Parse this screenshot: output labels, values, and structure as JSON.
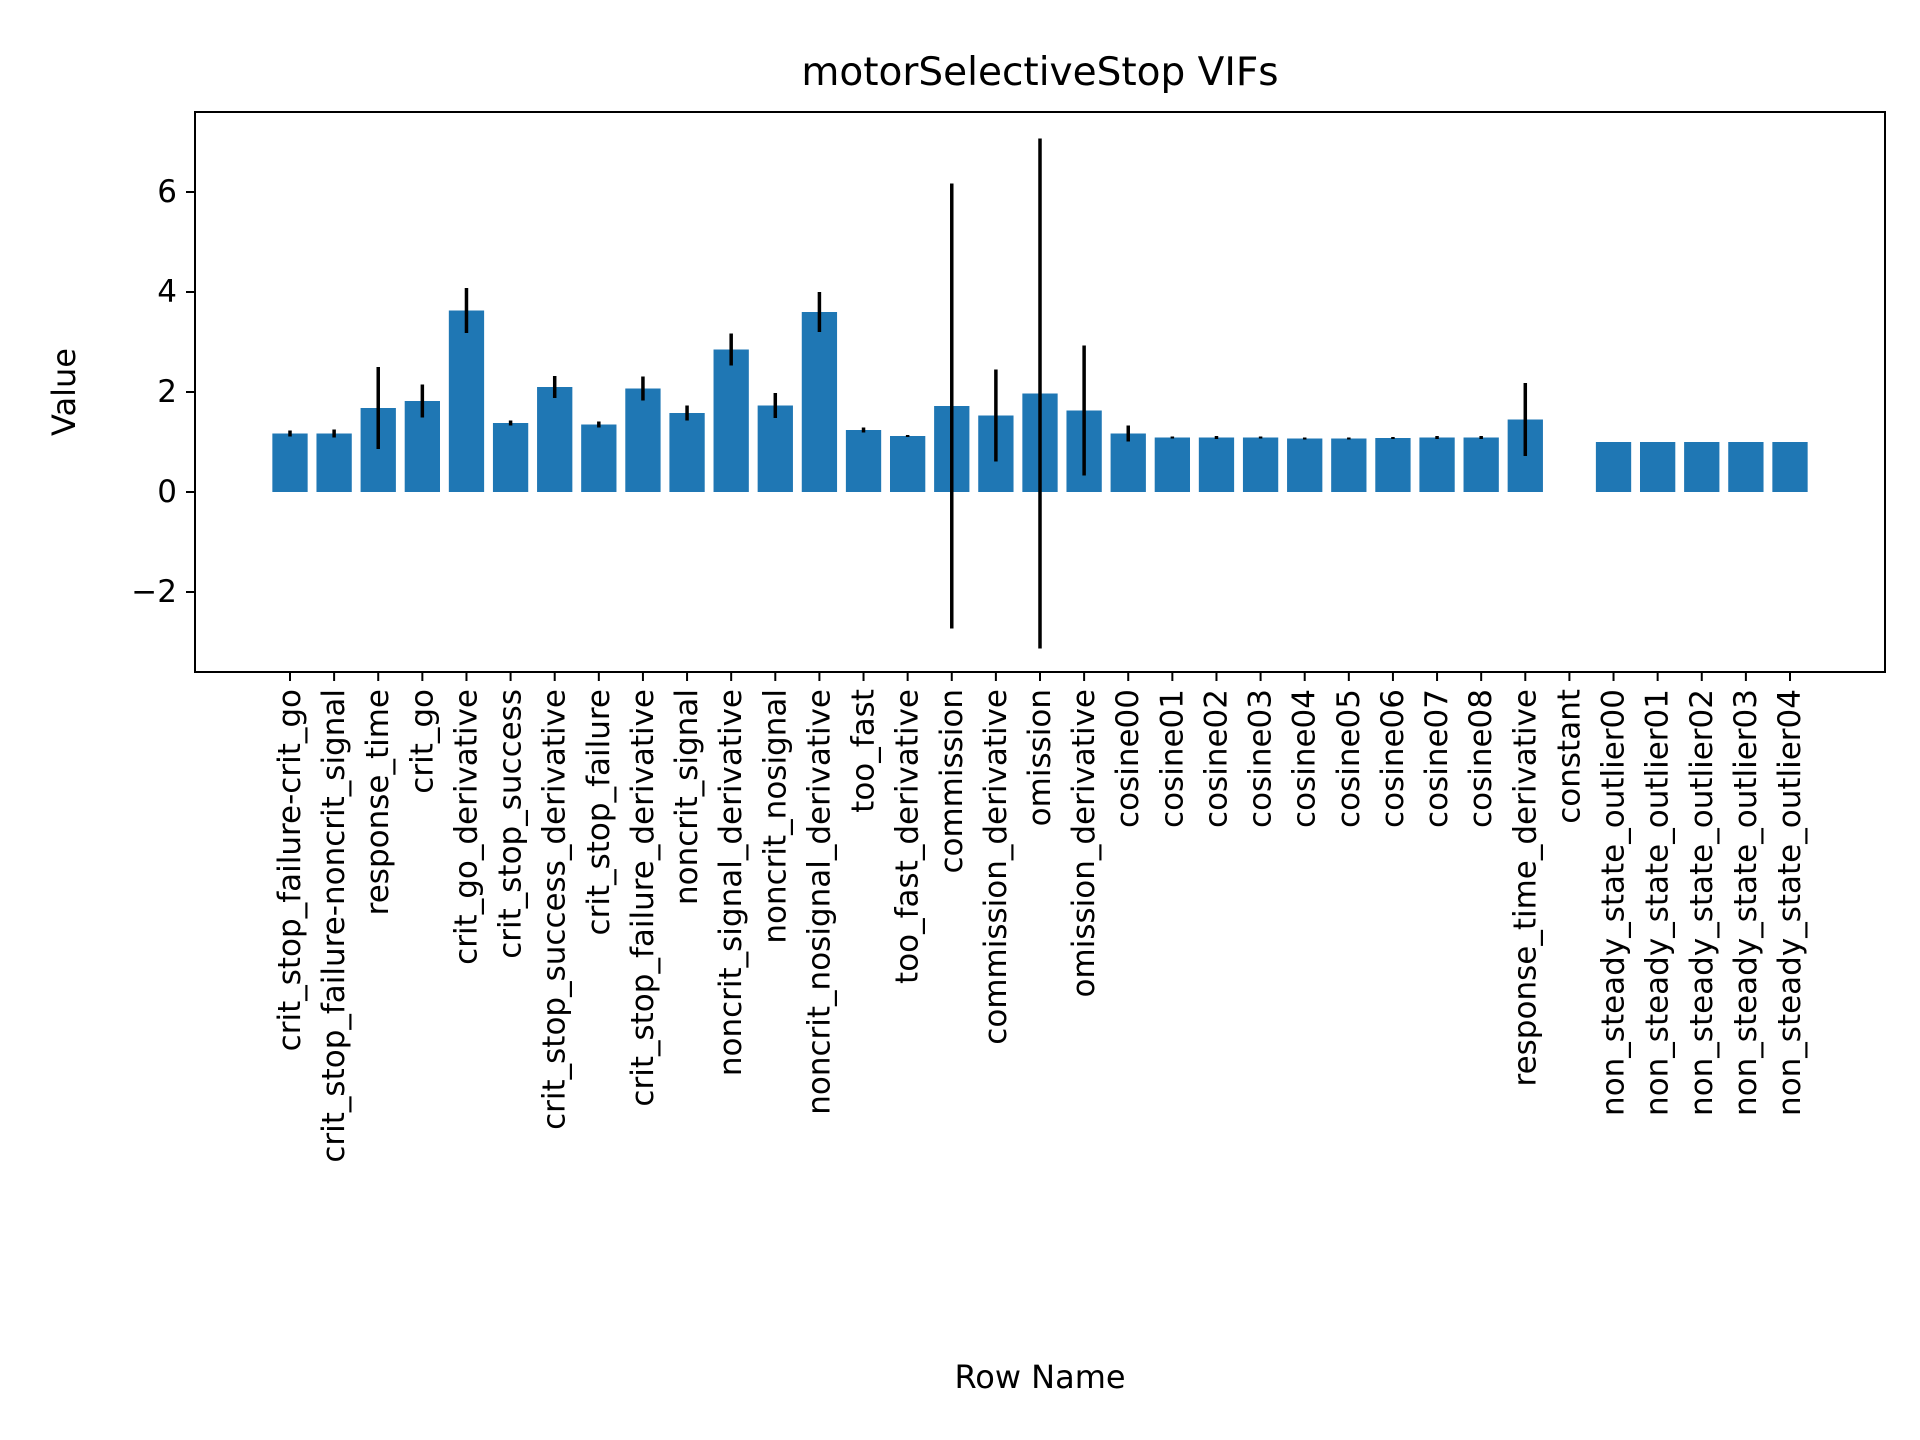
{
  "chart_data": {
    "type": "bar",
    "title": "motorSelectiveStop VIFs",
    "xlabel": "Row Name",
    "ylabel": "Value",
    "ylim": [
      -3.6,
      7.6
    ],
    "yticks": [
      -2,
      0,
      2,
      4,
      6
    ],
    "grid": false,
    "legend": "none",
    "bar_color": "#1f77b4",
    "errorbar_color": "#000000",
    "categories": [
      "crit_stop_failure-crit_go",
      "crit_stop_failure-noncrit_signal",
      "response_time",
      "crit_go",
      "crit_go_derivative",
      "crit_stop_success",
      "crit_stop_success_derivative",
      "crit_stop_failure",
      "crit_stop_failure_derivative",
      "noncrit_signal",
      "noncrit_signal_derivative",
      "noncrit_nosignal",
      "noncrit_nosignal_derivative",
      "too_fast",
      "too_fast_derivative",
      "commission",
      "commission_derivative",
      "omission",
      "omission_derivative",
      "cosine00",
      "cosine01",
      "cosine02",
      "cosine03",
      "cosine04",
      "cosine05",
      "cosine06",
      "cosine07",
      "cosine08",
      "response_time_derivative",
      "constant",
      "non_steady_state_outlier00",
      "non_steady_state_outlier01",
      "non_steady_state_outlier02",
      "non_steady_state_outlier03",
      "non_steady_state_outlier04"
    ],
    "values": [
      1.17,
      1.17,
      1.68,
      1.82,
      3.63,
      1.38,
      2.1,
      1.35,
      2.07,
      1.58,
      2.85,
      1.73,
      3.6,
      1.24,
      1.12,
      1.72,
      1.53,
      1.97,
      1.63,
      1.17,
      1.09,
      1.09,
      1.09,
      1.07,
      1.07,
      1.08,
      1.09,
      1.09,
      1.45,
      null,
      1.0,
      1.0,
      1.0,
      1.0,
      1.0
    ],
    "errors": [
      0.06,
      0.08,
      0.82,
      0.33,
      0.45,
      0.05,
      0.22,
      0.06,
      0.24,
      0.15,
      0.32,
      0.25,
      0.4,
      0.05,
      0.02,
      4.45,
      0.92,
      5.1,
      1.3,
      0.16,
      0.02,
      0.03,
      0.02,
      0.02,
      0.02,
      0.02,
      0.03,
      0.03,
      0.73,
      null,
      0,
      0,
      0,
      0,
      0
    ]
  }
}
